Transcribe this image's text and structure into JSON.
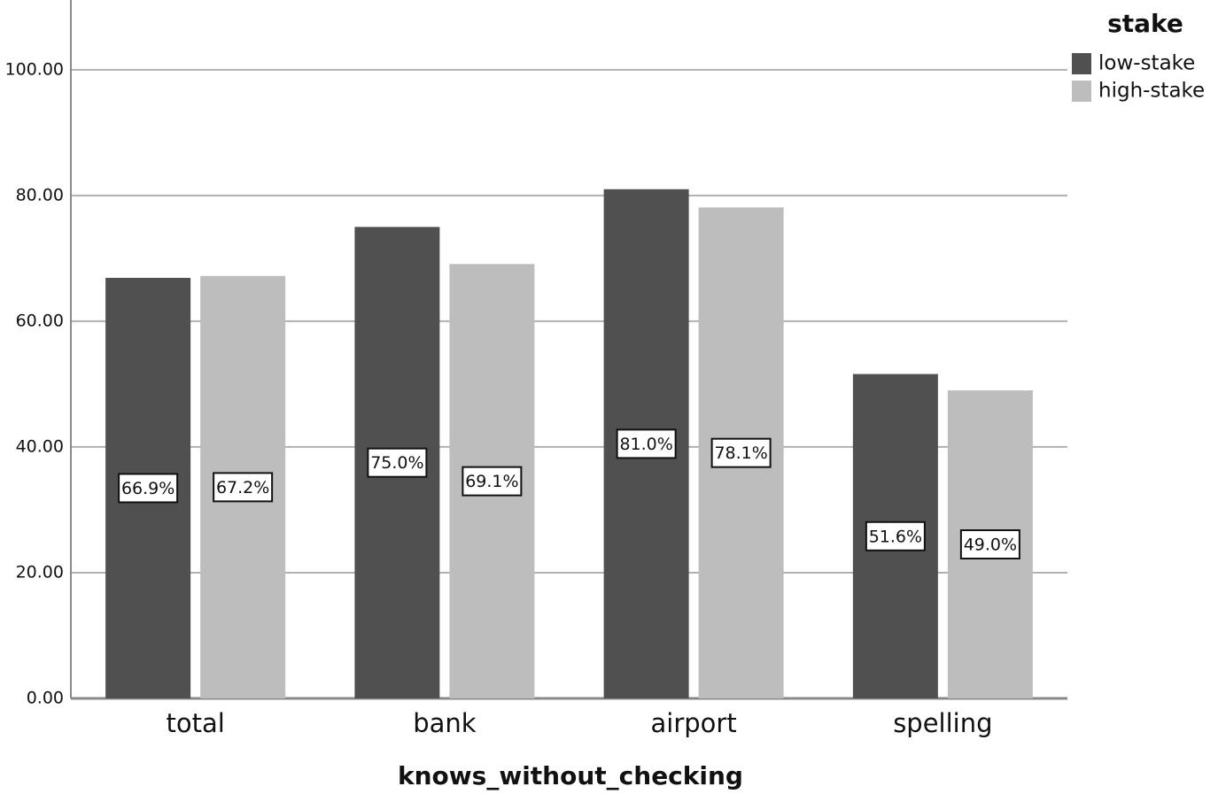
{
  "chart_data": {
    "type": "bar",
    "x_label": "knows_without_checking",
    "legend_title": "stake",
    "legend_position": "top-right",
    "categories": [
      "total",
      "bank",
      "airport",
      "spelling"
    ],
    "series": [
      {
        "name": "low-stake",
        "color": "#505050",
        "values": [
          66.9,
          75.0,
          81.0,
          51.6
        ],
        "value_labels": [
          "66.9%",
          "75.0%",
          "81.0%",
          "51.6%"
        ]
      },
      {
        "name": "high-stake",
        "color": "#bdbdbd",
        "values": [
          67.2,
          69.1,
          78.1,
          49.0
        ],
        "value_labels": [
          "67.2%",
          "69.1%",
          "78.1%",
          "49.0%"
        ]
      }
    ],
    "ylim": [
      0,
      111.1
    ],
    "yticks": [
      {
        "value": 0,
        "label": "0.00"
      },
      {
        "value": 20,
        "label": "20.00"
      },
      {
        "value": 40,
        "label": "40.00"
      },
      {
        "value": 60,
        "label": "60.00"
      },
      {
        "value": 80,
        "label": "80.00"
      },
      {
        "value": 100,
        "label": "100.00"
      }
    ],
    "grid": true
  }
}
